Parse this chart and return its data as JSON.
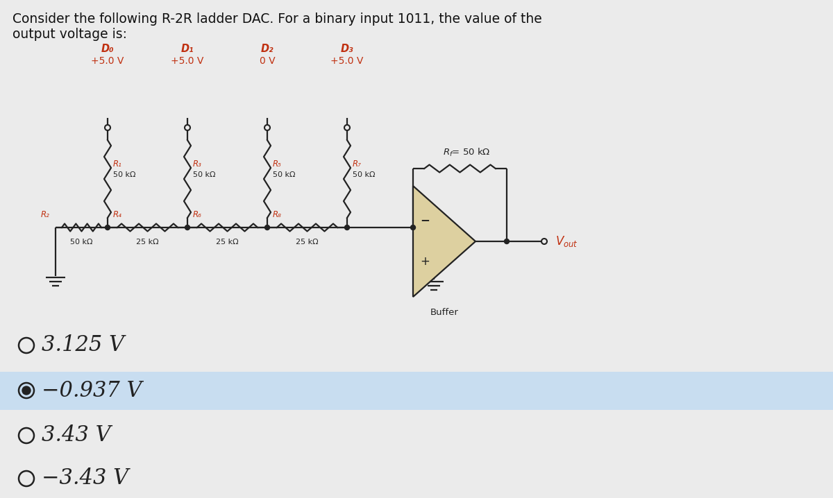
{
  "title_line1": "Consider the following R-2R ladder DAC. For a binary input 1011, the value of the",
  "title_line2": "output voltage is:",
  "bg_color": "#ebebeb",
  "options": [
    {
      "text": "3.125 V",
      "selected": false
    },
    {
      "text": "−0.937 V",
      "selected": true
    },
    {
      "text": "3.43 V",
      "selected": false
    },
    {
      "text": "−3.43 V",
      "selected": false
    }
  ],
  "option_selected_bg": "#c8ddf0",
  "red_color": "#c03010",
  "black_color": "#111111",
  "circuit_color": "#222222",
  "opamp_fill": "#ddd0a0"
}
